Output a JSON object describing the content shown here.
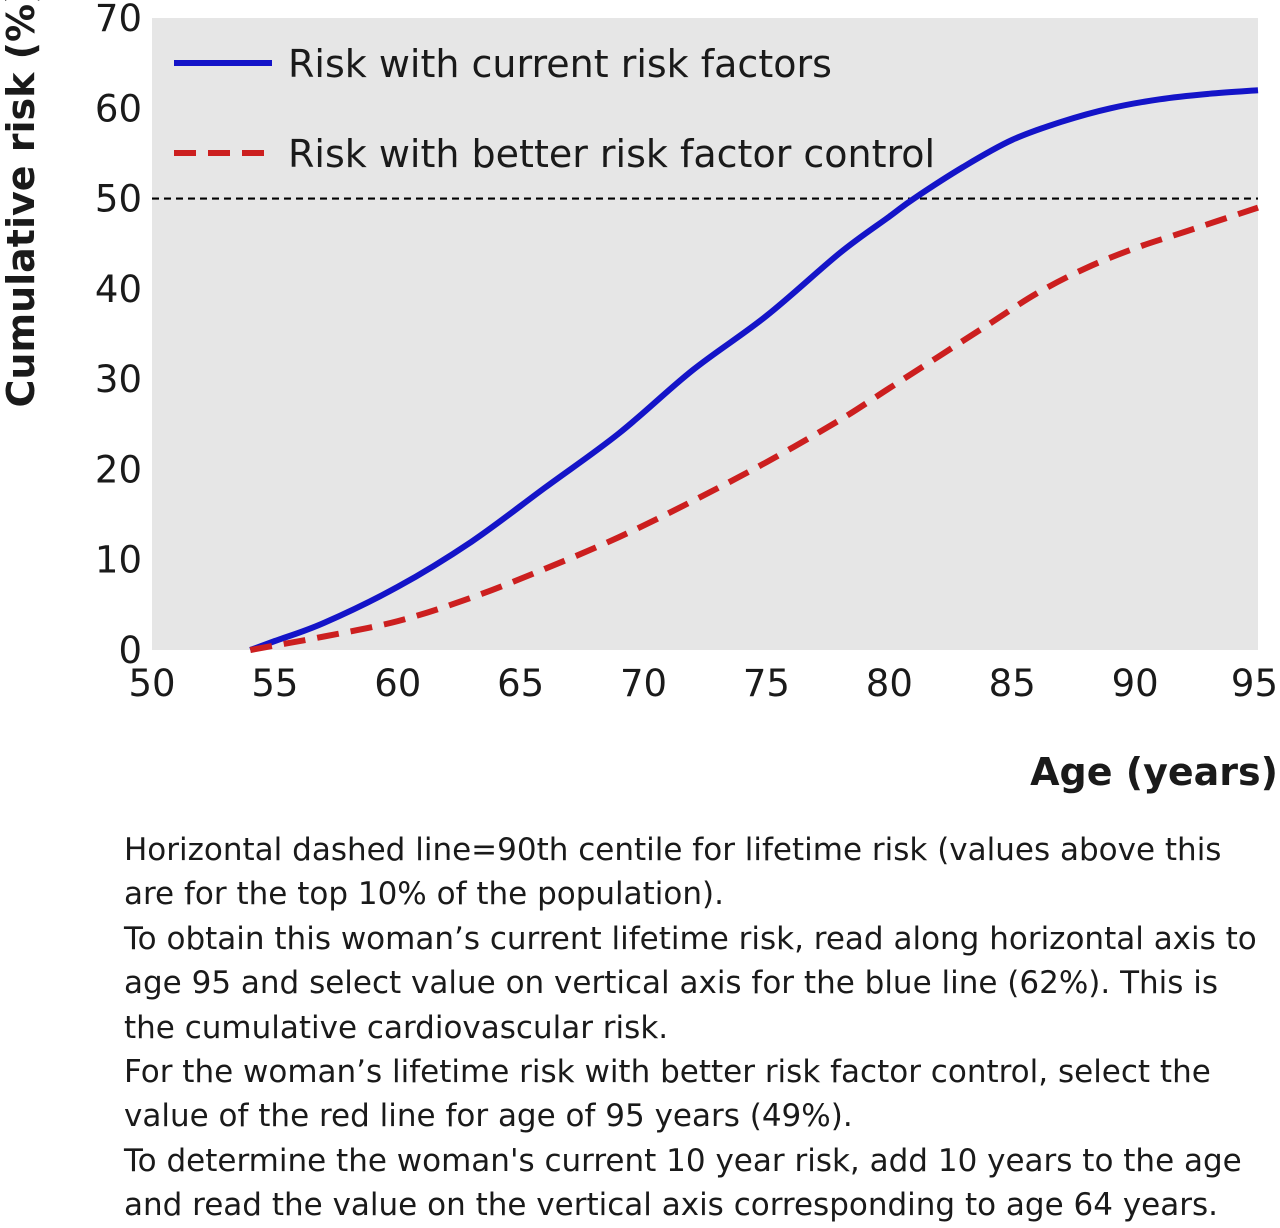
{
  "chart_data": {
    "type": "line",
    "xlabel": "Age (years)",
    "ylabel": "Cumulative risk (%)",
    "xlim": [
      50,
      95
    ],
    "ylim": [
      0,
      70
    ],
    "x_ticks": [
      50,
      55,
      60,
      65,
      70,
      75,
      80,
      85,
      90,
      95
    ],
    "y_ticks": [
      0,
      10,
      20,
      30,
      40,
      50,
      60,
      70
    ],
    "grid": false,
    "legend_position": "top-left",
    "reference_line": {
      "y": 50,
      "style": "dashed",
      "color": "#000000"
    },
    "series": [
      {
        "name": "Risk with current risk factors",
        "color": "#1414c8",
        "style": "solid",
        "x": [
          54,
          55,
          57,
          60,
          63,
          66,
          69,
          72,
          75,
          78,
          80,
          81,
          83,
          85,
          87,
          89,
          91,
          93,
          95
        ],
        "y": [
          0,
          1,
          3,
          7,
          12,
          18,
          24,
          31,
          37,
          44,
          48,
          50,
          53.5,
          56.5,
          58.5,
          60,
          61,
          61.6,
          62
        ]
      },
      {
        "name": "Risk with better risk factor control",
        "color": "#cc1f1f",
        "style": "dashed",
        "x": [
          54,
          55,
          57,
          60,
          63,
          66,
          69,
          72,
          75,
          78,
          80,
          82,
          84,
          86,
          88,
          90,
          92,
          95
        ],
        "y": [
          0,
          0.5,
          1.5,
          3.2,
          5.8,
          9,
          12.5,
          16.5,
          20.8,
          25.5,
          29,
          32.5,
          36,
          39.5,
          42.3,
          44.5,
          46.3,
          49
        ]
      }
    ]
  },
  "notes": [
    "Horizontal dashed line=90th centile for lifetime risk (values above this are for the top 10% of the population).",
    "To obtain this woman’s current lifetime risk, read along horizontal axis to age 95 and select value on vertical axis for the blue line (62%). This is the cumulative cardiovascular risk.",
    "For the woman’s lifetime risk with better risk factor control, select the value of the red line for age of 95 years (49%).",
    "To determine the woman's current 10 year risk, add 10 years to the age and read the value on the vertical axis corresponding to age 64 years."
  ],
  "colors": {
    "plot_background": "#e6e6e6",
    "current_line": "#1414c8",
    "better_line": "#cc1f1f"
  }
}
